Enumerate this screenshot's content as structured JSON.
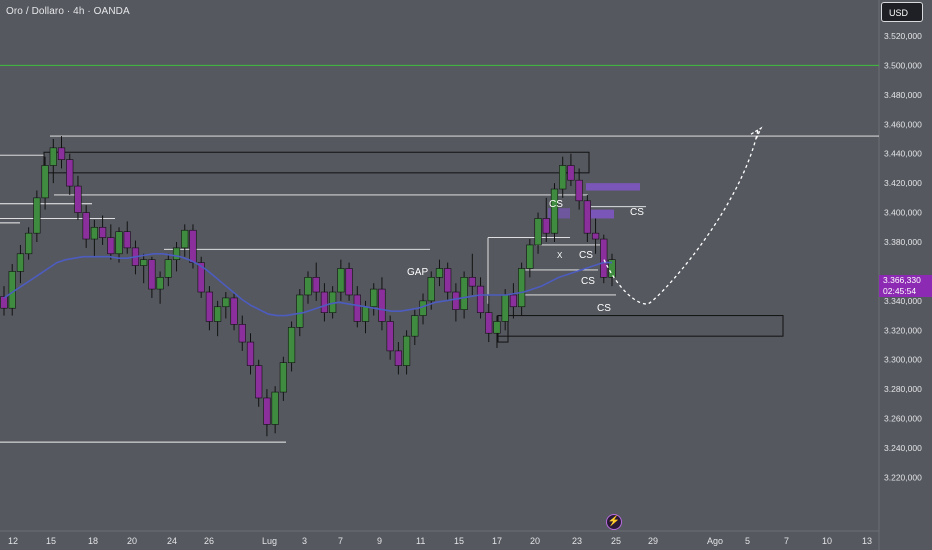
{
  "header": {
    "symbol_title": "Oro / Dollaro · 4h · OANDA"
  },
  "toolbar": {
    "currency_label": "USD"
  },
  "current_price": {
    "price": "3.366,330",
    "countdown": "02:45:54"
  },
  "icons": {
    "replay": "bolt-icon"
  },
  "colors": {
    "background": "#55585f",
    "bull": "#3f8b3f",
    "bear": "#8a2f9b",
    "ma_line": "#4d5cbf",
    "resistance_line": "#3fbf3f",
    "price_tag": "#8d2ab3",
    "zone_fill": "#8156c8"
  },
  "chart_data": {
    "type": "candlestick",
    "title": "Oro / Dollaro · 4h · OANDA",
    "price_axis": {
      "ylim": [
        3211000,
        3528000
      ],
      "ticks": [
        "3.520,000",
        "3.500,000",
        "3.480,000",
        "3.460,000",
        "3.440,000",
        "3.420,000",
        "3.400,000",
        "3.380,000",
        "3.340,000",
        "3.320,000",
        "3.300,000",
        "3.280,000",
        "3.260,000",
        "3.240,000",
        "3.220,000"
      ],
      "tick_values": [
        3520000,
        3500000,
        3480000,
        3460000,
        3440000,
        3420000,
        3400000,
        3380000,
        3340000,
        3320000,
        3300000,
        3280000,
        3260000,
        3240000,
        3220000
      ]
    },
    "time_axis": {
      "ticks": [
        "12",
        "15",
        "18",
        "20",
        "24",
        "26",
        "Lug",
        "3",
        "7",
        "9",
        "11",
        "15",
        "17",
        "20",
        "23",
        "25",
        "29",
        "Ago",
        "5",
        "7",
        "10",
        "13"
      ]
    },
    "candles_ohlc": [
      [
        3343,
        3350,
        3330,
        3335
      ],
      [
        3335,
        3365,
        3330,
        3360
      ],
      [
        3360,
        3378,
        3352,
        3372
      ],
      [
        3372,
        3390,
        3368,
        3386
      ],
      [
        3386,
        3415,
        3380,
        3410
      ],
      [
        3410,
        3438,
        3402,
        3432
      ],
      [
        3432,
        3450,
        3420,
        3444
      ],
      [
        3444,
        3452,
        3430,
        3436
      ],
      [
        3436,
        3440,
        3412,
        3418
      ],
      [
        3418,
        3425,
        3395,
        3400
      ],
      [
        3400,
        3405,
        3376,
        3382
      ],
      [
        3382,
        3395,
        3370,
        3390
      ],
      [
        3390,
        3398,
        3378,
        3383
      ],
      [
        3383,
        3392,
        3368,
        3372
      ],
      [
        3372,
        3390,
        3366,
        3387
      ],
      [
        3387,
        3394,
        3372,
        3376
      ],
      [
        3376,
        3381,
        3358,
        3364
      ],
      [
        3364,
        3372,
        3352,
        3368
      ],
      [
        3368,
        3370,
        3342,
        3348
      ],
      [
        3348,
        3360,
        3338,
        3356
      ],
      [
        3356,
        3372,
        3350,
        3368
      ],
      [
        3368,
        3380,
        3360,
        3376
      ],
      [
        3376,
        3392,
        3370,
        3388
      ],
      [
        3388,
        3392,
        3362,
        3366
      ],
      [
        3366,
        3370,
        3342,
        3346
      ],
      [
        3346,
        3350,
        3320,
        3326
      ],
      [
        3326,
        3340,
        3316,
        3336
      ],
      [
        3336,
        3346,
        3328,
        3342
      ],
      [
        3342,
        3346,
        3320,
        3324
      ],
      [
        3324,
        3330,
        3306,
        3312
      ],
      [
        3312,
        3318,
        3290,
        3296
      ],
      [
        3296,
        3300,
        3268,
        3274
      ],
      [
        3274,
        3280,
        3248,
        3256
      ],
      [
        3256,
        3282,
        3250,
        3278
      ],
      [
        3278,
        3302,
        3272,
        3298
      ],
      [
        3298,
        3326,
        3292,
        3322
      ],
      [
        3322,
        3348,
        3316,
        3344
      ],
      [
        3344,
        3360,
        3338,
        3356
      ],
      [
        3356,
        3366,
        3340,
        3346
      ],
      [
        3346,
        3352,
        3326,
        3332
      ],
      [
        3332,
        3350,
        3328,
        3346
      ],
      [
        3346,
        3368,
        3340,
        3362
      ],
      [
        3362,
        3366,
        3340,
        3344
      ],
      [
        3344,
        3350,
        3322,
        3326
      ],
      [
        3326,
        3340,
        3318,
        3336
      ],
      [
        3336,
        3352,
        3330,
        3348
      ],
      [
        3348,
        3356,
        3320,
        3326
      ],
      [
        3326,
        3330,
        3300,
        3306
      ],
      [
        3306,
        3312,
        3290,
        3296
      ],
      [
        3296,
        3320,
        3290,
        3316
      ],
      [
        3316,
        3334,
        3310,
        3330
      ],
      [
        3330,
        3345,
        3324,
        3340
      ],
      [
        3340,
        3360,
        3334,
        3356
      ],
      [
        3356,
        3368,
        3350,
        3362
      ],
      [
        3362,
        3366,
        3340,
        3346
      ],
      [
        3346,
        3352,
        3326,
        3334
      ],
      [
        3334,
        3360,
        3328,
        3356
      ],
      [
        3356,
        3372,
        3344,
        3350
      ],
      [
        3350,
        3356,
        3328,
        3332
      ],
      [
        3332,
        3344,
        3312,
        3318
      ],
      [
        3318,
        3330,
        3308,
        3326
      ],
      [
        3326,
        3348,
        3320,
        3344
      ],
      [
        3344,
        3352,
        3328,
        3336
      ],
      [
        3336,
        3366,
        3330,
        3362
      ],
      [
        3362,
        3382,
        3356,
        3378
      ],
      [
        3378,
        3400,
        3372,
        3396
      ],
      [
        3396,
        3410,
        3380,
        3386
      ],
      [
        3386,
        3420,
        3380,
        3416
      ],
      [
        3416,
        3438,
        3410,
        3432
      ],
      [
        3432,
        3440,
        3418,
        3422
      ],
      [
        3422,
        3430,
        3402,
        3408
      ],
      [
        3408,
        3412,
        3380,
        3386
      ],
      [
        3386,
        3396,
        3372,
        3382
      ],
      [
        3382,
        3385,
        3352,
        3356
      ],
      [
        3356,
        3372,
        3350,
        3368
      ]
    ],
    "moving_average": [
      3342,
      3346,
      3350,
      3354,
      3358,
      3362,
      3366,
      3368,
      3369,
      3370,
      3370,
      3370,
      3370,
      3369,
      3369,
      3370,
      3371,
      3372,
      3372,
      3371,
      3370,
      3368,
      3365,
      3361,
      3356,
      3351,
      3346,
      3341,
      3337,
      3334,
      3331,
      3330,
      3330,
      3331,
      3332,
      3334,
      3336,
      3338,
      3339,
      3338,
      3337,
      3336,
      3335,
      3334,
      3333,
      3333,
      3334,
      3335,
      3337,
      3339,
      3340,
      3341,
      3342,
      3343,
      3344,
      3344,
      3344,
      3344,
      3345,
      3346,
      3348,
      3350,
      3353,
      3356,
      3358,
      3360,
      3362,
      3364,
      3366,
      3366
    ],
    "horizontal_levels": [
      3500000,
      3452000,
      3442000,
      3432000,
      3412000,
      3404000,
      3392000,
      3366000,
      3244000
    ],
    "labels": {
      "gap": "GAP",
      "cs_markers": [
        "CS",
        "CS",
        "CS",
        "CS",
        "CS"
      ],
      "x_marker": "X"
    },
    "projection": "dashed arrow from ~3,366 down to ~3,338 then up toward ~3,458",
    "grid": false,
    "legend": "none"
  }
}
